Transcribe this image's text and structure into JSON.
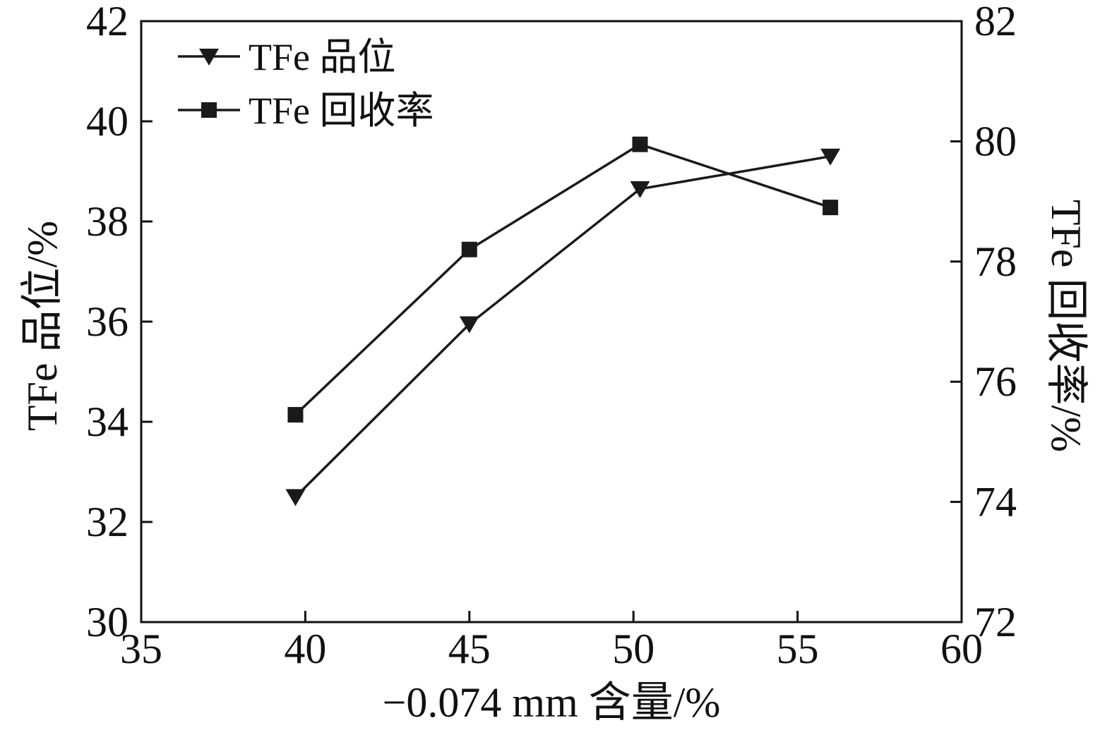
{
  "chart_data": {
    "type": "line",
    "title": "",
    "ink_color": "#111111",
    "grid": false,
    "legend_position": "top-left-inside",
    "x_axis": {
      "label": "−0.074 mm 含量/%",
      "min": 35,
      "max": 60,
      "ticks": [
        35,
        40,
        45,
        50,
        55,
        60
      ]
    },
    "y_left": {
      "label": "TFe 品位/%",
      "min": 30,
      "max": 42,
      "ticks": [
        30,
        32,
        34,
        36,
        38,
        40,
        42
      ]
    },
    "y_right": {
      "label": "TFe 回收率/%",
      "min": 72,
      "max": 82,
      "ticks": [
        72,
        74,
        76,
        78,
        80,
        82
      ]
    },
    "series": [
      {
        "name": "TFe 品位",
        "axis": "left",
        "marker": "triangle-down",
        "color": "#1a1a1a",
        "x": [
          39.7,
          45,
          50.2,
          56
        ],
        "y": [
          32.5,
          35.95,
          38.65,
          39.3
        ]
      },
      {
        "name": "TFe 回收率",
        "axis": "right",
        "marker": "square",
        "color": "#1a1a1a",
        "x": [
          39.7,
          45,
          50.2,
          56
        ],
        "y": [
          75.45,
          78.2,
          79.95,
          78.9
        ]
      }
    ]
  }
}
